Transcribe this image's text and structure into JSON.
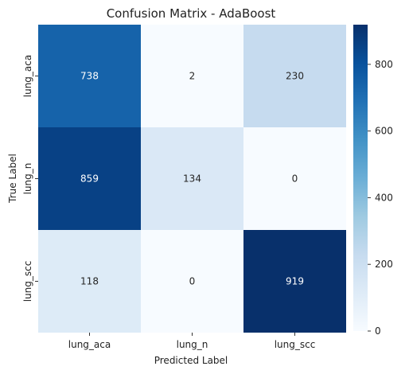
{
  "chart_data": {
    "type": "heatmap",
    "title": "Confusion Matrix - AdaBoost",
    "xlabel": "Predicted Label",
    "ylabel": "True Label",
    "x_categories": [
      "lung_aca",
      "lung_n",
      "lung_scc"
    ],
    "y_categories": [
      "lung_aca",
      "lung_n",
      "lung_scc"
    ],
    "values": [
      [
        738,
        2,
        230
      ],
      [
        859,
        134,
        0
      ],
      [
        118,
        0,
        919
      ]
    ],
    "colorbar": {
      "min": 0,
      "max": 919,
      "ticks": [
        0,
        200,
        400,
        600,
        800
      ],
      "colormap": "Blues"
    }
  }
}
